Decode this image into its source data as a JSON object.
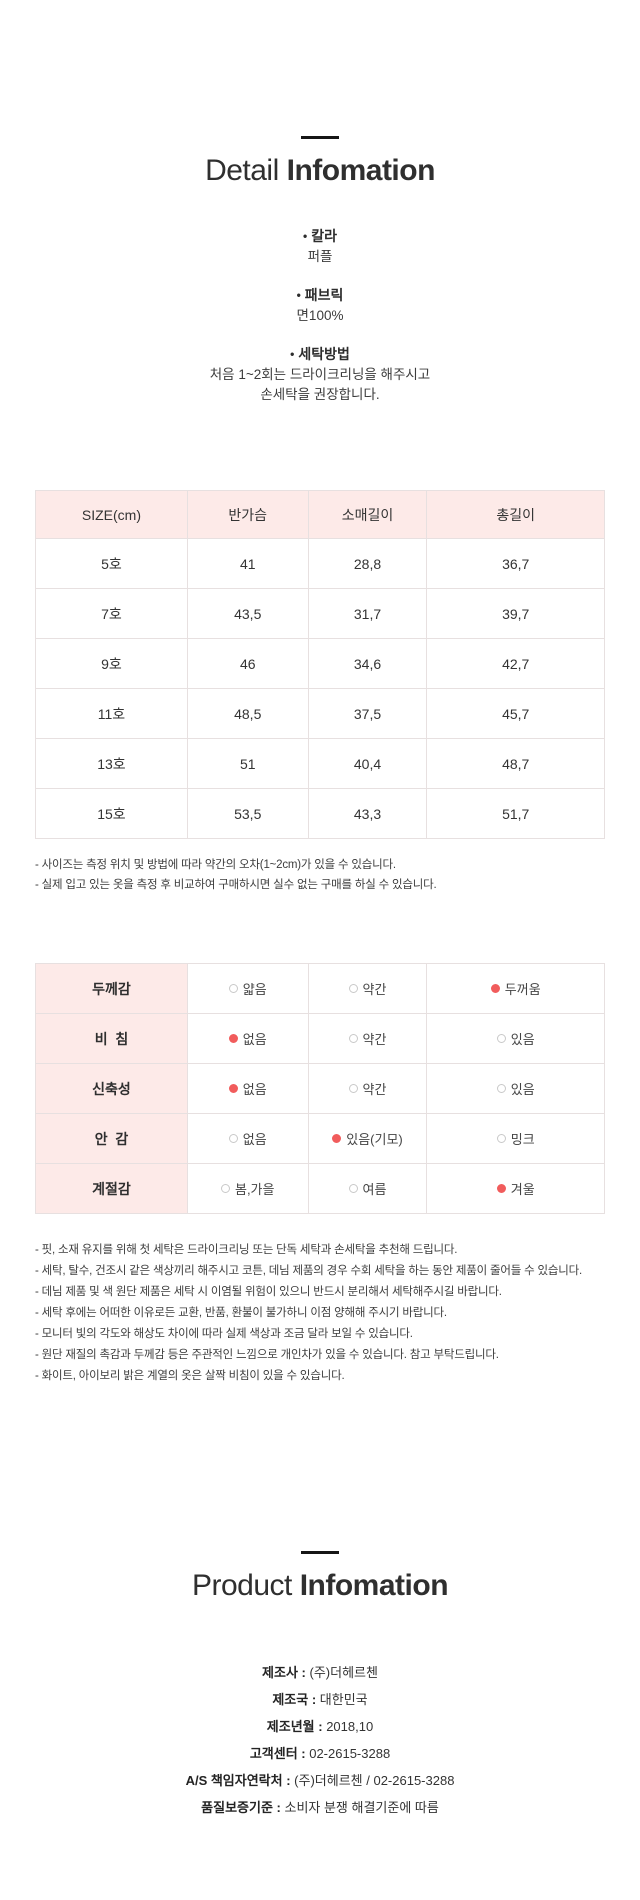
{
  "detail_section": {
    "title": {
      "light": "Detail",
      "bold": "Infomation"
    },
    "bullet_char": "•",
    "items": [
      {
        "label": "칼라",
        "lines": [
          "퍼플"
        ]
      },
      {
        "label": "패브릭",
        "lines": [
          "면100%"
        ]
      },
      {
        "label": "세탁방법",
        "lines": [
          "처음 1~2회는 드라이크리닝을 해주시고",
          "손세탁을 권장합니다."
        ]
      }
    ]
  },
  "size_table": {
    "headers": [
      "SIZE(cm)",
      "반가슴",
      "소매길이",
      "총길이"
    ],
    "rows": [
      [
        "5호",
        "41",
        "28,8",
        "36,7"
      ],
      [
        "7호",
        "43,5",
        "31,7",
        "39,7"
      ],
      [
        "9호",
        "46",
        "34,6",
        "42,7"
      ],
      [
        "11호",
        "48,5",
        "37,5",
        "45,7"
      ],
      [
        "13호",
        "51",
        "40,4",
        "48,7"
      ],
      [
        "15호",
        "53,5",
        "43,3",
        "51,7"
      ]
    ],
    "notes": [
      "- 사이즈는 측정 위치 및 방법에 따라 약간의 오차(1~2cm)가 있을 수 있습니다.",
      "- 실제 입고 있는 옷을 측정 후 비교하여 구매하시면 실수 없는 구매를 하실 수 있습니다."
    ]
  },
  "attr_table": {
    "rows": [
      {
        "label": "두께감",
        "options": [
          {
            "label": "얇음",
            "state": "off"
          },
          {
            "label": "약간",
            "state": "off"
          },
          {
            "label": "두꺼움",
            "state": "on"
          }
        ]
      },
      {
        "label": "비  침",
        "options": [
          {
            "label": "없음",
            "state": "on"
          },
          {
            "label": "약간",
            "state": "off"
          },
          {
            "label": "있음",
            "state": "off"
          }
        ]
      },
      {
        "label": "신축성",
        "options": [
          {
            "label": "없음",
            "state": "on"
          },
          {
            "label": "약간",
            "state": "off"
          },
          {
            "label": "있음",
            "state": "off"
          }
        ]
      },
      {
        "label": "안  감",
        "options": [
          {
            "label": "없음",
            "state": "off"
          },
          {
            "label": "있음(기모)",
            "state": "on"
          },
          {
            "label": "밍크",
            "state": "off"
          }
        ]
      },
      {
        "label": "계절감",
        "options": [
          {
            "label": "봄,가을",
            "state": "off"
          },
          {
            "label": "여름",
            "state": "off"
          },
          {
            "label": "겨울",
            "state": "on"
          }
        ]
      }
    ],
    "notes": [
      "- 핏, 소재 유지를 위해 첫 세탁은 드라이크리닝 또는 단독 세탁과 손세탁을 추천해 드립니다.",
      "- 세탁, 탈수, 건조시 같은 색상끼리 해주시고 코튼, 데님 제품의 경우 수회 세탁을 하는 동안 제품이 줄어들 수 있습니다.",
      "- 데님 제품 및 색 원단 제품은 세탁 시 이염될 위험이 있으니 반드시 분리해서 세탁해주시길 바랍니다.",
      "- 세탁 후에는 어떠한 이유로든 교환, 반품, 환불이 불가하니 이점 양해해 주시기 바랍니다.",
      "- 모니터 빛의 각도와 해상도 차이에 따라 실제 색상과 조금 달라 보일 수 있습니다.",
      "- 원단 재질의 촉감과 두께감 등은 주관적인 느낌으로 개인차가 있을 수 있습니다. 참고 부탁드립니다.",
      "- 화이트, 아이보리 밝은 계열의 옷은 살짝 비침이 있을 수 있습니다."
    ]
  },
  "product_section": {
    "title": {
      "light": "Product",
      "bold": "Infomation"
    },
    "separator": " : ",
    "rows": [
      {
        "label": "제조사",
        "value": "(주)더헤르첸"
      },
      {
        "label": "제조국",
        "value": "대한민국"
      },
      {
        "label": "제조년월",
        "value": "2018,10"
      },
      {
        "label": "고객센터",
        "value": "02-2615-3288"
      },
      {
        "label": "A/S 책임자연락처",
        "value": "(주)더헤르첸 / 02-2615-3288"
      },
      {
        "label": "품질보증기준",
        "value": "소비자 분쟁 해결기준에 따름"
      }
    ]
  },
  "colors": {
    "table_header_pink": "#fdeae8",
    "radio_selected_red": "#f15c5c",
    "heading_text": "#2f2f2f",
    "divider_bar": "#161616"
  }
}
